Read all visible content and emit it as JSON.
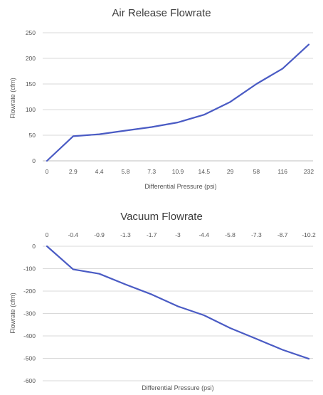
{
  "chart_data": [
    {
      "type": "line",
      "title": "Air Release Flowrate",
      "xlabel": "Differential Pressure (psi)",
      "ylabel": "Flowrate (cfm)",
      "categories": [
        "0",
        "2.9",
        "4.4",
        "5.8",
        "7.3",
        "10.9",
        "14.5",
        "29",
        "58",
        "116",
        "232"
      ],
      "yticks": [
        "0",
        "50",
        "100",
        "150",
        "200",
        "250"
      ],
      "ylim": [
        0,
        250
      ],
      "grid": true,
      "series": [
        {
          "values": [
            0,
            48,
            52,
            59,
            66,
            75,
            90,
            115,
            150,
            180,
            227
          ]
        }
      ],
      "line_color": "#4a5bc4"
    },
    {
      "type": "line",
      "title": "Vacuum Flowrate",
      "xlabel": "Differential Pressure (psi)",
      "ylabel": "Flowrate (cfm)",
      "categories": [
        "0",
        "-0.4",
        "-0.9",
        "-1.3",
        "-1.7",
        "-3",
        "-4.4",
        "-5.8",
        "-7.3",
        "-8.7",
        "-10.2"
      ],
      "yticks": [
        "0",
        "-100",
        "-200",
        "-300",
        "-400",
        "-500",
        "-600"
      ],
      "ylim": [
        -600,
        0
      ],
      "grid": true,
      "series": [
        {
          "values": [
            0,
            -103,
            -123,
            -170,
            -215,
            -268,
            -308,
            -365,
            -413,
            -462,
            -502
          ]
        }
      ],
      "line_color": "#4a5bc4"
    }
  ]
}
